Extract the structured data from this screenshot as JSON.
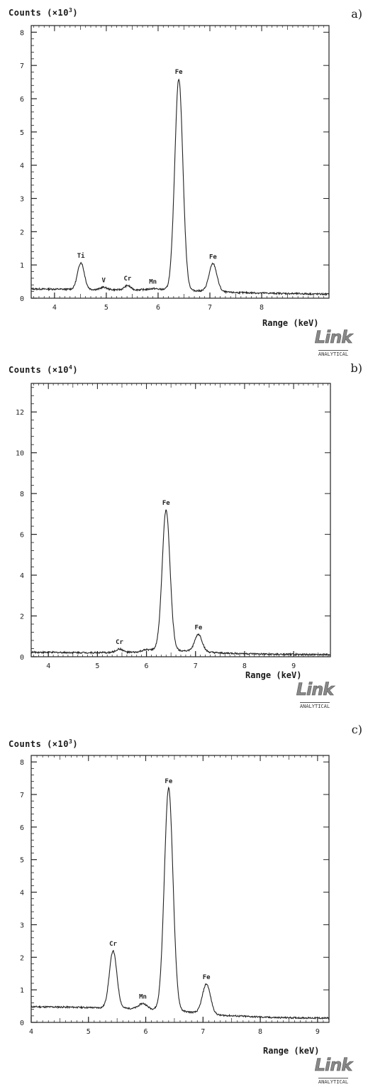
{
  "chart_data": [
    {
      "type": "line",
      "panel_label": "a)",
      "ylabel_prefix": "Counts (×10",
      "ylabel_exp": "3",
      "ylabel_suffix": ")",
      "xlabel": "Range (keV)",
      "xlim": [
        3.55,
        9.3
      ],
      "ylim": [
        0,
        8.2
      ],
      "xticks": [
        4,
        5,
        6,
        7,
        8
      ],
      "yticks": [
        0,
        1,
        2,
        3,
        4,
        5,
        6,
        7,
        8
      ],
      "baseline": [
        [
          3.55,
          0.28
        ],
        [
          4.2,
          0.27
        ],
        [
          5.5,
          0.25
        ],
        [
          6.0,
          0.27
        ],
        [
          6.8,
          0.22
        ],
        [
          7.5,
          0.17
        ],
        [
          8.5,
          0.14
        ],
        [
          9.3,
          0.12
        ]
      ],
      "peaks": [
        {
          "label": "Ti",
          "x": 4.51,
          "y": 1.07,
          "sigma": 0.065
        },
        {
          "label": "V",
          "x": 4.95,
          "y": 0.33,
          "sigma": 0.06
        },
        {
          "label": "Cr",
          "x": 5.41,
          "y": 0.38,
          "sigma": 0.06
        },
        {
          "label": "Mn",
          "x": 5.9,
          "y": 0.29,
          "sigma": 0.06
        },
        {
          "label": "Fe",
          "x": 6.4,
          "y": 6.6,
          "sigma": 0.078
        },
        {
          "label": "Fe",
          "x": 7.06,
          "y": 1.04,
          "sigma": 0.075
        }
      ]
    },
    {
      "type": "line",
      "panel_label": "b)",
      "ylabel_prefix": "Counts (×10",
      "ylabel_exp": "4",
      "ylabel_suffix": ")",
      "xlabel": "Range (keV)",
      "xlim": [
        3.65,
        9.75
      ],
      "ylim": [
        0,
        13.4
      ],
      "xticks": [
        4,
        5,
        6,
        7,
        8,
        9
      ],
      "yticks": [
        0,
        2,
        4,
        6,
        8,
        10,
        12
      ],
      "baseline": [
        [
          3.65,
          0.22
        ],
        [
          5.0,
          0.2
        ],
        [
          5.8,
          0.22
        ],
        [
          6.0,
          0.35
        ],
        [
          6.8,
          0.3
        ],
        [
          7.5,
          0.18
        ],
        [
          8.5,
          0.12
        ],
        [
          9.75,
          0.1
        ]
      ],
      "peaks": [
        {
          "label": "Cr",
          "x": 5.45,
          "y": 0.38,
          "sigma": 0.07
        },
        {
          "label": "Fe",
          "x": 6.4,
          "y": 7.2,
          "sigma": 0.08
        },
        {
          "label": "Fe",
          "x": 7.06,
          "y": 1.1,
          "sigma": 0.075
        }
      ]
    },
    {
      "type": "line",
      "panel_label": "c)",
      "ylabel_prefix": "Counts (×10",
      "ylabel_exp": "3",
      "ylabel_suffix": ")",
      "xlabel": "Range (keV)",
      "xlim": [
        4.0,
        9.2
      ],
      "ylim": [
        0,
        8.2
      ],
      "xticks": [
        4,
        5,
        6,
        7,
        8,
        9
      ],
      "yticks": [
        0,
        1,
        2,
        3,
        4,
        5,
        6,
        7,
        8
      ],
      "baseline": [
        [
          4.0,
          0.48
        ],
        [
          4.6,
          0.47
        ],
        [
          5.2,
          0.45
        ],
        [
          6.0,
          0.42
        ],
        [
          6.6,
          0.35
        ],
        [
          7.3,
          0.22
        ],
        [
          8.2,
          0.15
        ],
        [
          9.2,
          0.13
        ]
      ],
      "peaks": [
        {
          "label": "Cr",
          "x": 5.43,
          "y": 2.2,
          "sigma": 0.065
        },
        {
          "label": "Mn",
          "x": 5.95,
          "y": 0.58,
          "sigma": 0.07
        },
        {
          "label": "Fe",
          "x": 6.4,
          "y": 7.2,
          "sigma": 0.075
        },
        {
          "label": "Fe",
          "x": 7.06,
          "y": 1.18,
          "sigma": 0.07
        }
      ]
    }
  ],
  "logo": {
    "word": "Link",
    "sub": "ANALYTICAL"
  }
}
